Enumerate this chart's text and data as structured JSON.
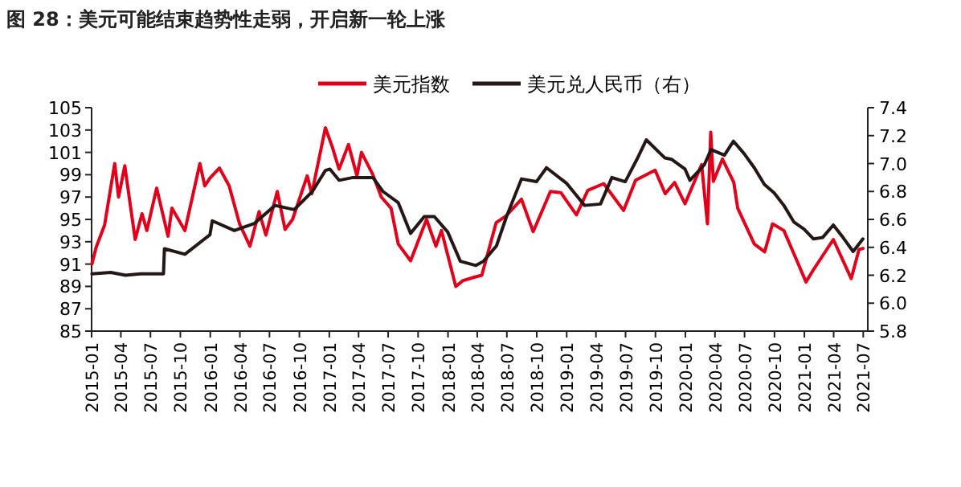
{
  "chart_data": {
    "type": "line",
    "title": "图 28：美元可能结束趋势性走弱，开启新一轮上涨",
    "legend": "top",
    "xlim": [
      "2015-01-01",
      "2021-07-15"
    ],
    "xticks": [
      "2015-01",
      "2015-04",
      "2015-07",
      "2015-10",
      "2016-01",
      "2016-04",
      "2016-07",
      "2016-10",
      "2017-01",
      "2017-04",
      "2017-07",
      "2017-10",
      "2018-01",
      "2018-04",
      "2018-07",
      "2018-10",
      "2019-01",
      "2019-04",
      "2019-07",
      "2019-10",
      "2020-01",
      "2020-04",
      "2020-07",
      "2020-10",
      "2021-01",
      "2021-04",
      "2021-07"
    ],
    "ylim": [
      85,
      105
    ],
    "yticks": [
      85,
      87,
      89,
      91,
      93,
      95,
      97,
      99,
      101,
      103,
      105
    ],
    "y2lim": [
      5.8,
      7.4
    ],
    "y2ticks": [
      5.8,
      {
        "value": 6,
        "label": "6.0"
      },
      6.2,
      6.4,
      6.6,
      6.8,
      {
        "value": 7,
        "label": "7.0"
      },
      7.2,
      7.4
    ],
    "series": [
      {
        "name": "美元指数",
        "color": "#e0001b",
        "x": [
          "2015-01-02",
          "2015-01-15",
          "2015-02-10",
          "2015-03-13",
          "2015-03-25",
          "2015-04-13",
          "2015-05-15",
          "2015-06-05",
          "2015-06-20",
          "2015-07-20",
          "2015-08-24",
          "2015-09-05",
          "2015-10-15",
          "2015-11-30",
          "2015-12-15",
          "2015-12-31",
          "2016-01-29",
          "2016-02-28",
          "2016-03-31",
          "2016-05-02",
          "2016-05-30",
          "2016-06-20",
          "2016-07-25",
          "2016-08-18",
          "2016-09-10",
          "2016-10-25",
          "2016-11-08",
          "2016-12-20",
          "2017-01-10",
          "2017-01-31",
          "2017-03-01",
          "2017-03-27",
          "2017-04-10",
          "2017-05-15",
          "2017-06-10",
          "2017-07-10",
          "2017-08-01",
          "2017-09-08",
          "2017-10-27",
          "2017-11-25",
          "2017-12-12",
          "2018-01-25",
          "2018-02-15",
          "2018-03-20",
          "2018-04-15",
          "2018-05-29",
          "2018-06-28",
          "2018-08-15",
          "2018-09-20",
          "2018-11-12",
          "2018-12-14",
          "2019-01-31",
          "2019-03-07",
          "2019-04-25",
          "2019-06-25",
          "2019-08-01",
          "2019-09-30",
          "2019-10-31",
          "2019-11-29",
          "2019-12-31",
          "2020-02-20",
          "2020-03-09",
          "2020-03-19",
          "2020-03-27",
          "2020-04-24",
          "2020-05-29",
          "2020-06-10",
          "2020-07-31",
          "2020-09-01",
          "2020-09-25",
          "2020-10-30",
          "2020-11-30",
          "2021-01-06",
          "2021-01-29",
          "2021-03-31",
          "2021-05-25",
          "2021-06-18",
          "2021-06-30"
        ],
        "values": [
          91,
          92.5,
          94.5,
          100,
          97,
          99.8,
          93.2,
          95.5,
          94,
          97.8,
          93.5,
          96,
          94,
          100,
          98,
          98.7,
          99.6,
          98,
          94.6,
          92.6,
          95.7,
          93.6,
          97.5,
          94.1,
          95,
          98.9,
          97.3,
          103.2,
          101.5,
          99.5,
          101.7,
          98.9,
          101,
          99,
          97,
          96,
          92.8,
          91.3,
          95,
          92.6,
          94,
          89,
          89.5,
          89.8,
          90,
          94.7,
          95.3,
          96.8,
          93.9,
          97.5,
          97.4,
          95.4,
          97.6,
          98.2,
          95.8,
          98.5,
          99.4,
          97.3,
          98.3,
          96.4,
          99.9,
          94.6,
          102.8,
          98.4,
          100.4,
          98.3,
          96,
          92.8,
          92.1,
          94.6,
          94,
          91.9,
          89.4,
          90.5,
          93.2,
          89.7,
          92.3,
          92.4
        ]
      },
      {
        "name": "美元兑人民币（右）",
        "color": "#231815",
        "axis": "y2",
        "x": [
          "2015-01-02",
          "2015-03-01",
          "2015-04-15",
          "2015-06-01",
          "2015-08-10",
          "2015-08-13",
          "2015-10-15",
          "2015-12-31",
          "2016-01-07",
          "2016-03-15",
          "2016-05-15",
          "2016-07-18",
          "2016-09-15",
          "2016-11-10",
          "2016-12-20",
          "2017-01-03",
          "2017-01-31",
          "2017-03-15",
          "2017-05-15",
          "2017-06-15",
          "2017-08-01",
          "2017-09-08",
          "2017-10-20",
          "2017-11-20",
          "2017-12-31",
          "2018-02-08",
          "2018-03-28",
          "2018-04-20",
          "2018-05-30",
          "2018-06-30",
          "2018-08-15",
          "2018-09-30",
          "2018-10-31",
          "2018-12-31",
          "2019-02-25",
          "2019-04-15",
          "2019-05-20",
          "2019-06-30",
          "2019-08-05",
          "2019-09-03",
          "2019-10-30",
          "2019-11-20",
          "2019-12-31",
          "2020-01-15",
          "2020-02-28",
          "2020-03-20",
          "2020-04-30",
          "2020-05-28",
          "2020-06-30",
          "2020-07-31",
          "2020-08-31",
          "2020-09-30",
          "2020-10-30",
          "2020-11-30",
          "2020-12-31",
          "2021-01-29",
          "2021-02-26",
          "2021-03-31",
          "2021-04-30",
          "2021-05-31",
          "2021-06-30"
        ],
        "values": [
          6.21,
          6.22,
          6.2,
          6.21,
          6.21,
          6.39,
          6.35,
          6.49,
          6.59,
          6.52,
          6.57,
          6.7,
          6.67,
          6.8,
          6.95,
          6.96,
          6.88,
          6.9,
          6.9,
          6.8,
          6.72,
          6.5,
          6.62,
          6.62,
          6.51,
          6.3,
          6.27,
          6.3,
          6.41,
          6.62,
          6.89,
          6.87,
          6.97,
          6.86,
          6.7,
          6.71,
          6.9,
          6.87,
          7.03,
          7.17,
          7.04,
          7.03,
          6.96,
          6.88,
          6.99,
          7.1,
          7.06,
          7.16,
          7.07,
          6.97,
          6.85,
          6.79,
          6.7,
          6.58,
          6.53,
          6.46,
          6.47,
          6.56,
          6.47,
          6.37,
          6.46
        ]
      }
    ]
  }
}
